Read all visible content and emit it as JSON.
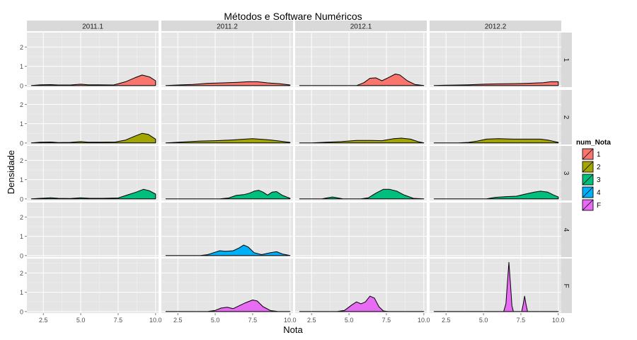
{
  "chart_data": {
    "type": "area",
    "title": "Métodos e Software Numéricos",
    "xlabel": "Nota",
    "ylabel": "Densidade",
    "xlim": [
      1.4,
      10.2
    ],
    "ylim": [
      -0.08,
      2.75
    ],
    "x_ticks": [
      2.5,
      5.0,
      7.5,
      10.0
    ],
    "x_tick_labels": [
      "2.5",
      "5.0",
      "7.5",
      "10.0"
    ],
    "y_ticks": [
      0,
      1,
      2
    ],
    "y_tick_labels": [
      "0",
      "1",
      "2"
    ],
    "grid": true,
    "legend_position": "right",
    "legend": {
      "title": "num_Nota",
      "entries": [
        {
          "label": "1",
          "color": "#F8766D"
        },
        {
          "label": "2",
          "color": "#A3A500"
        },
        {
          "label": "3",
          "color": "#00BF7D"
        },
        {
          "label": "4",
          "color": "#00B0F6"
        },
        {
          "label": "F",
          "color": "#E76BF3"
        }
      ]
    },
    "columns": [
      "2011.1",
      "2011.2",
      "2012.1",
      "2012.2"
    ],
    "rows": [
      "1",
      "2",
      "3",
      "4",
      "F"
    ],
    "panels": [
      {
        "col": "2011.1",
        "row": "1",
        "points": [
          [
            1.7,
            0
          ],
          [
            2.3,
            0.04
          ],
          [
            3,
            0.05
          ],
          [
            3.5,
            0.03
          ],
          [
            4.3,
            0.03
          ],
          [
            5,
            0.07
          ],
          [
            5.5,
            0.04
          ],
          [
            6.2,
            0.04
          ],
          [
            7.2,
            0.03
          ],
          [
            8,
            0.2
          ],
          [
            8.6,
            0.4
          ],
          [
            9.1,
            0.55
          ],
          [
            9.6,
            0.45
          ],
          [
            10.0,
            0.25
          ]
        ]
      },
      {
        "col": "2011.2",
        "row": "1",
        "points": [
          [
            1.7,
            0
          ],
          [
            2.5,
            0.03
          ],
          [
            3.5,
            0.06
          ],
          [
            4.5,
            0.12
          ],
          [
            5.5,
            0.14
          ],
          [
            6.5,
            0.17
          ],
          [
            7.2,
            0.2
          ],
          [
            7.8,
            0.2
          ],
          [
            8.5,
            0.14
          ],
          [
            9.3,
            0.1
          ],
          [
            10.0,
            0.03
          ]
        ]
      },
      {
        "col": "2012.1",
        "row": "1",
        "points": [
          [
            1.7,
            0
          ],
          [
            5.5,
            0
          ],
          [
            6,
            0.15
          ],
          [
            6.4,
            0.38
          ],
          [
            6.8,
            0.4
          ],
          [
            7.2,
            0.25
          ],
          [
            7.6,
            0.4
          ],
          [
            8.1,
            0.6
          ],
          [
            8.4,
            0.55
          ],
          [
            8.9,
            0.25
          ],
          [
            9.4,
            0.06
          ],
          [
            10.0,
            0
          ]
        ]
      },
      {
        "col": "2012.2",
        "row": "1",
        "points": [
          [
            1.7,
            0
          ],
          [
            2.5,
            0.02
          ],
          [
            4,
            0.04
          ],
          [
            5,
            0.07
          ],
          [
            6,
            0.09
          ],
          [
            7,
            0.1
          ],
          [
            8,
            0.12
          ],
          [
            9,
            0.15
          ],
          [
            9.5,
            0.2
          ],
          [
            10.0,
            0.2
          ]
        ]
      },
      {
        "col": "2011.1",
        "row": "2",
        "points": [
          [
            1.7,
            0
          ],
          [
            2.3,
            0.04
          ],
          [
            3,
            0.05
          ],
          [
            3.5,
            0.02
          ],
          [
            4.3,
            0.03
          ],
          [
            5,
            0.07
          ],
          [
            5.5,
            0.04
          ],
          [
            6.3,
            0.04
          ],
          [
            7.3,
            0.05
          ],
          [
            8,
            0.15
          ],
          [
            8.6,
            0.35
          ],
          [
            9.1,
            0.5
          ],
          [
            9.5,
            0.45
          ],
          [
            10.0,
            0.2
          ]
        ]
      },
      {
        "col": "2011.2",
        "row": "2",
        "points": [
          [
            1.7,
            0
          ],
          [
            3,
            0.06
          ],
          [
            4,
            0.1
          ],
          [
            5,
            0.12
          ],
          [
            6,
            0.15
          ],
          [
            7,
            0.2
          ],
          [
            7.5,
            0.22
          ],
          [
            8.5,
            0.17
          ],
          [
            9.3,
            0.1
          ],
          [
            10.0,
            0.03
          ]
        ]
      },
      {
        "col": "2012.1",
        "row": "2",
        "points": [
          [
            1.7,
            0
          ],
          [
            2.5,
            0
          ],
          [
            3.5,
            0.04
          ],
          [
            4.5,
            0.07
          ],
          [
            5.5,
            0.13
          ],
          [
            6.5,
            0.13
          ],
          [
            7.2,
            0.12
          ],
          [
            8,
            0.22
          ],
          [
            8.5,
            0.25
          ],
          [
            9.1,
            0.2
          ],
          [
            9.6,
            0.07
          ],
          [
            10.0,
            0
          ]
        ]
      },
      {
        "col": "2012.2",
        "row": "2",
        "points": [
          [
            1.7,
            0
          ],
          [
            3.3,
            0
          ],
          [
            4,
            0.03
          ],
          [
            4.6,
            0.1
          ],
          [
            5.2,
            0.2
          ],
          [
            6,
            0.22
          ],
          [
            7,
            0.2
          ],
          [
            8,
            0.2
          ],
          [
            8.8,
            0.2
          ],
          [
            9.3,
            0.15
          ],
          [
            10.0,
            0.03
          ]
        ]
      },
      {
        "col": "2011.1",
        "row": "3",
        "points": [
          [
            1.7,
            0
          ],
          [
            2.3,
            0.03
          ],
          [
            3,
            0.06
          ],
          [
            3.5,
            0.03
          ],
          [
            4.3,
            0.02
          ],
          [
            5,
            0.06
          ],
          [
            5.6,
            0.03
          ],
          [
            6.5,
            0.03
          ],
          [
            7.5,
            0.05
          ],
          [
            8.1,
            0.2
          ],
          [
            8.7,
            0.35
          ],
          [
            9.2,
            0.5
          ],
          [
            9.6,
            0.42
          ],
          [
            10.0,
            0.25
          ]
        ]
      },
      {
        "col": "2011.2",
        "row": "3",
        "points": [
          [
            1.7,
            0
          ],
          [
            5.3,
            0
          ],
          [
            5.9,
            0.05
          ],
          [
            6.4,
            0.18
          ],
          [
            6.9,
            0.22
          ],
          [
            7.3,
            0.3
          ],
          [
            7.6,
            0.4
          ],
          [
            7.9,
            0.45
          ],
          [
            8.2,
            0.35
          ],
          [
            8.5,
            0.2
          ],
          [
            8.8,
            0.35
          ],
          [
            9.1,
            0.38
          ],
          [
            9.5,
            0.18
          ],
          [
            10.0,
            0.03
          ]
        ]
      },
      {
        "col": "2012.1",
        "row": "3",
        "points": [
          [
            1.7,
            0
          ],
          [
            3.2,
            0
          ],
          [
            3.5,
            0.05
          ],
          [
            3.9,
            0.1
          ],
          [
            4.2,
            0.06
          ],
          [
            4.6,
            0
          ],
          [
            5.8,
            0
          ],
          [
            6.3,
            0.06
          ],
          [
            6.8,
            0.3
          ],
          [
            7.3,
            0.5
          ],
          [
            7.7,
            0.5
          ],
          [
            8.2,
            0.4
          ],
          [
            8.7,
            0.2
          ],
          [
            9.3,
            0.03
          ],
          [
            10.0,
            0
          ]
        ]
      },
      {
        "col": "2012.2",
        "row": "3",
        "points": [
          [
            1.7,
            0
          ],
          [
            5.2,
            0
          ],
          [
            5.8,
            0.08
          ],
          [
            6.5,
            0.12
          ],
          [
            7.2,
            0.14
          ],
          [
            7.8,
            0.25
          ],
          [
            8.4,
            0.35
          ],
          [
            8.8,
            0.4
          ],
          [
            9.3,
            0.35
          ],
          [
            9.7,
            0.2
          ],
          [
            10.0,
            0.1
          ]
        ]
      },
      {
        "col": "2011.2",
        "row": "4",
        "points": [
          [
            1.7,
            0
          ],
          [
            4,
            0
          ],
          [
            4.5,
            0.05
          ],
          [
            4.9,
            0.15
          ],
          [
            5.3,
            0.25
          ],
          [
            5.7,
            0.22
          ],
          [
            6.2,
            0.25
          ],
          [
            6.6,
            0.4
          ],
          [
            6.9,
            0.55
          ],
          [
            7.2,
            0.45
          ],
          [
            7.6,
            0.15
          ],
          [
            8.1,
            0.05
          ],
          [
            8.7,
            0.15
          ],
          [
            9.1,
            0.2
          ],
          [
            9.5,
            0.08
          ],
          [
            10.0,
            0
          ]
        ]
      },
      {
        "col": "2011.2",
        "row": "F",
        "points": [
          [
            1.7,
            0
          ],
          [
            4.5,
            0
          ],
          [
            5,
            0.06
          ],
          [
            5.4,
            0.18
          ],
          [
            5.8,
            0.22
          ],
          [
            6.2,
            0.15
          ],
          [
            6.6,
            0.3
          ],
          [
            7.0,
            0.45
          ],
          [
            7.5,
            0.6
          ],
          [
            7.8,
            0.55
          ],
          [
            8.2,
            0.25
          ],
          [
            8.7,
            0.05
          ],
          [
            9.2,
            0
          ],
          [
            10.0,
            0
          ]
        ]
      },
      {
        "col": "2012.1",
        "row": "F",
        "points": [
          [
            1.7,
            0
          ],
          [
            4.2,
            0
          ],
          [
            4.7,
            0.06
          ],
          [
            5.2,
            0.35
          ],
          [
            5.5,
            0.5
          ],
          [
            5.8,
            0.4
          ],
          [
            6.1,
            0.5
          ],
          [
            6.4,
            0.8
          ],
          [
            6.7,
            0.7
          ],
          [
            7.0,
            0.25
          ],
          [
            7.3,
            0.03
          ],
          [
            7.6,
            0
          ],
          [
            10.0,
            0
          ]
        ]
      },
      {
        "col": "2012.2",
        "row": "F",
        "points": [
          [
            1.7,
            0
          ],
          [
            6.35,
            0
          ],
          [
            6.5,
            0.4
          ],
          [
            6.6,
            1.5
          ],
          [
            6.7,
            2.55
          ],
          [
            6.8,
            1.5
          ],
          [
            6.9,
            0.3
          ],
          [
            7.0,
            0
          ],
          [
            7.55,
            0
          ],
          [
            7.65,
            0.35
          ],
          [
            7.75,
            0.8
          ],
          [
            7.85,
            0.35
          ],
          [
            7.95,
            0
          ],
          [
            10.0,
            0
          ]
        ]
      }
    ]
  }
}
